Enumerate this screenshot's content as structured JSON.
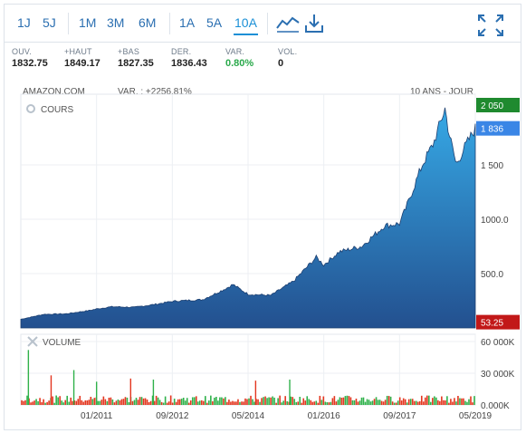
{
  "toolbar": {
    "periods": [
      "1J",
      "5J",
      "1M",
      "3M",
      "6M",
      "1A",
      "5A",
      "10A"
    ],
    "active_period": "10A"
  },
  "stats": [
    {
      "label": "OUV.",
      "value": "1832.75"
    },
    {
      "label": "+HAUT",
      "value": "1849.17"
    },
    {
      "label": "+BAS",
      "value": "1827.35"
    },
    {
      "label": "DER.",
      "value": "1836.43"
    },
    {
      "label": "VAR.",
      "value": "0.80%"
    },
    {
      "label": "VOL.",
      "value": "0"
    }
  ],
  "chart_header": {
    "ticker": "AMAZON.COM",
    "variation": "VAR. : +2256.81%",
    "range": "10 ANS - JOUR",
    "price_panel_label": "COURS",
    "volume_panel_label": "VOLUME"
  },
  "colors": {
    "accent": "#1a8fd6",
    "area_top": "#36a9e6",
    "area_bottom": "#23508f",
    "high_badge": "#1f8a2f",
    "last_badge": "#3a86e6",
    "low_badge": "#c21818",
    "vol_up": "#2fb14a",
    "vol_down": "#e3351e",
    "positive": "#2aa94b"
  },
  "chart_data": [
    {
      "type": "area",
      "title": "COURS",
      "x": [
        "2009-05",
        "2009-11",
        "2010-05",
        "2010-11",
        "2011-01",
        "2011-05",
        "2011-11",
        "2012-05",
        "2012-09",
        "2012-11",
        "2013-05",
        "2013-11",
        "2014-01",
        "2014-05",
        "2014-11",
        "2015-05",
        "2015-11",
        "2016-01",
        "2016-05",
        "2016-11",
        "2017-05",
        "2017-09",
        "2017-11",
        "2018-03",
        "2018-06",
        "2018-09",
        "2018-10",
        "2018-12",
        "2019-02",
        "2019-05"
      ],
      "y": [
        80,
        125,
        130,
        160,
        175,
        195,
        190,
        220,
        245,
        250,
        260,
        360,
        400,
        310,
        300,
        430,
        650,
        580,
        700,
        750,
        940,
        960,
        1130,
        1500,
        1700,
        2020,
        1800,
        1500,
        1650,
        1836
      ],
      "ylim": [
        0,
        2150
      ],
      "yticks": [
        500,
        1000,
        1500
      ],
      "ytick_labels": [
        "500.0",
        "1000.0",
        "1 500"
      ],
      "xtick_labels": [
        "01/2011",
        "09/2012",
        "05/2014",
        "01/2016",
        "09/2017",
        "05/2019"
      ],
      "markers": {
        "high": "2 050",
        "last": "1 836",
        "low": "53.25"
      },
      "grid": true
    },
    {
      "type": "bar",
      "title": "VOLUME",
      "ylim": [
        0,
        60000
      ],
      "ytick_labels": [
        "60 000K",
        "30 000K",
        "0.000K"
      ],
      "spikes": [
        {
          "date": "2009-07",
          "value": 52000,
          "dir": "up"
        },
        {
          "date": "2010-01",
          "value": 28000,
          "dir": "down"
        },
        {
          "date": "2010-07",
          "value": 33000,
          "dir": "up"
        },
        {
          "date": "2011-01",
          "value": 22000,
          "dir": "up"
        },
        {
          "date": "2011-10",
          "value": 25000,
          "dir": "down"
        },
        {
          "date": "2012-04",
          "value": 24000,
          "dir": "up"
        },
        {
          "date": "2014-07",
          "value": 23000,
          "dir": "down"
        },
        {
          "date": "2015-04",
          "value": 24000,
          "dir": "up"
        }
      ]
    }
  ]
}
